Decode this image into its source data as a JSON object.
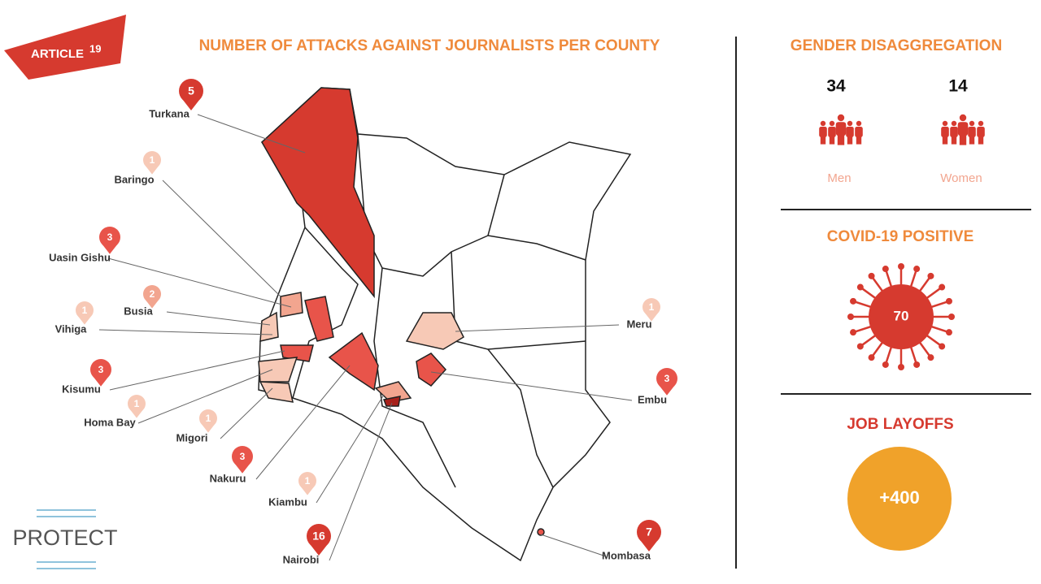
{
  "logo": {
    "text": "ARTICLE",
    "sup": "19"
  },
  "map": {
    "title": "NUMBER OF ATTACKS AGAINST JOURNALISTS PER COUNTY",
    "counties": [
      {
        "name": "Turkana",
        "attacks": 5
      },
      {
        "name": "Baringo",
        "attacks": 1
      },
      {
        "name": "Uasin Gishu",
        "attacks": 3
      },
      {
        "name": "Busia",
        "attacks": 2
      },
      {
        "name": "Vihiga",
        "attacks": 1
      },
      {
        "name": "Kisumu",
        "attacks": 3
      },
      {
        "name": "Homa Bay",
        "attacks": 1
      },
      {
        "name": "Migori",
        "attacks": 1
      },
      {
        "name": "Nakuru",
        "attacks": 3
      },
      {
        "name": "Kiambu",
        "attacks": 1
      },
      {
        "name": "Nairobi",
        "attacks": 16
      },
      {
        "name": "Mombasa",
        "attacks": 7
      },
      {
        "name": "Meru",
        "attacks": 1
      },
      {
        "name": "Embu",
        "attacks": 3
      }
    ]
  },
  "gender": {
    "title": "GENDER DISAGGREGATION",
    "groups": [
      {
        "label": "Men",
        "count": 34
      },
      {
        "label": "Women",
        "count": 14
      }
    ]
  },
  "covid": {
    "title": "COVID-19 POSITIVE",
    "count": 70
  },
  "layoffs": {
    "title": "JOB LAYOFFS",
    "label": "+400"
  },
  "footer_logo": "PROTECT"
}
